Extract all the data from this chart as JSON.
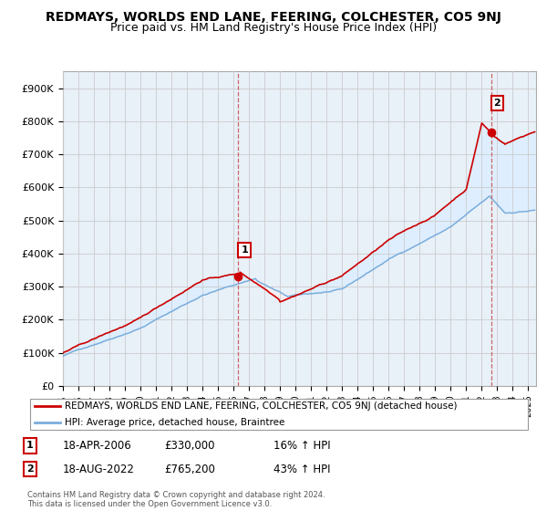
{
  "title": "REDMAYS, WORLDS END LANE, FEERING, COLCHESTER, CO5 9NJ",
  "subtitle": "Price paid vs. HM Land Registry's House Price Index (HPI)",
  "ylabel_ticks": [
    "£0",
    "£100K",
    "£200K",
    "£300K",
    "£400K",
    "£500K",
    "£600K",
    "£700K",
    "£800K",
    "£900K"
  ],
  "ytick_values": [
    0,
    100000,
    200000,
    300000,
    400000,
    500000,
    600000,
    700000,
    800000,
    900000
  ],
  "ylim": [
    0,
    950000
  ],
  "xlim_start": 1995.0,
  "xlim_end": 2025.5,
  "sale1_x": 2006.3,
  "sale1_y": 330000,
  "sale1_label": "1",
  "sale2_x": 2022.6,
  "sale2_y": 765200,
  "sale2_label": "2",
  "annotation1": [
    "1",
    "18-APR-2006",
    "£330,000",
    "16% ↑ HPI"
  ],
  "annotation2": [
    "2",
    "18-AUG-2022",
    "£765,200",
    "43% ↑ HPI"
  ],
  "legend_line1": "REDMAYS, WORLDS END LANE, FEERING, COLCHESTER, CO5 9NJ (detached house)",
  "legend_line2": "HPI: Average price, detached house, Braintree",
  "footer": "Contains HM Land Registry data © Crown copyright and database right 2024.\nThis data is licensed under the Open Government Licence v3.0.",
  "line_color_red": "#cc0000",
  "line_color_blue": "#7aaddc",
  "fill_color": "#ddeeff",
  "grid_color": "#cccccc",
  "chart_bg": "#e8f0f8",
  "background_color": "#ffffff",
  "title_fontsize": 10,
  "subtitle_fontsize": 9,
  "annotation_box_color": "#cc0000",
  "dashed_line_color": "#cc6666"
}
